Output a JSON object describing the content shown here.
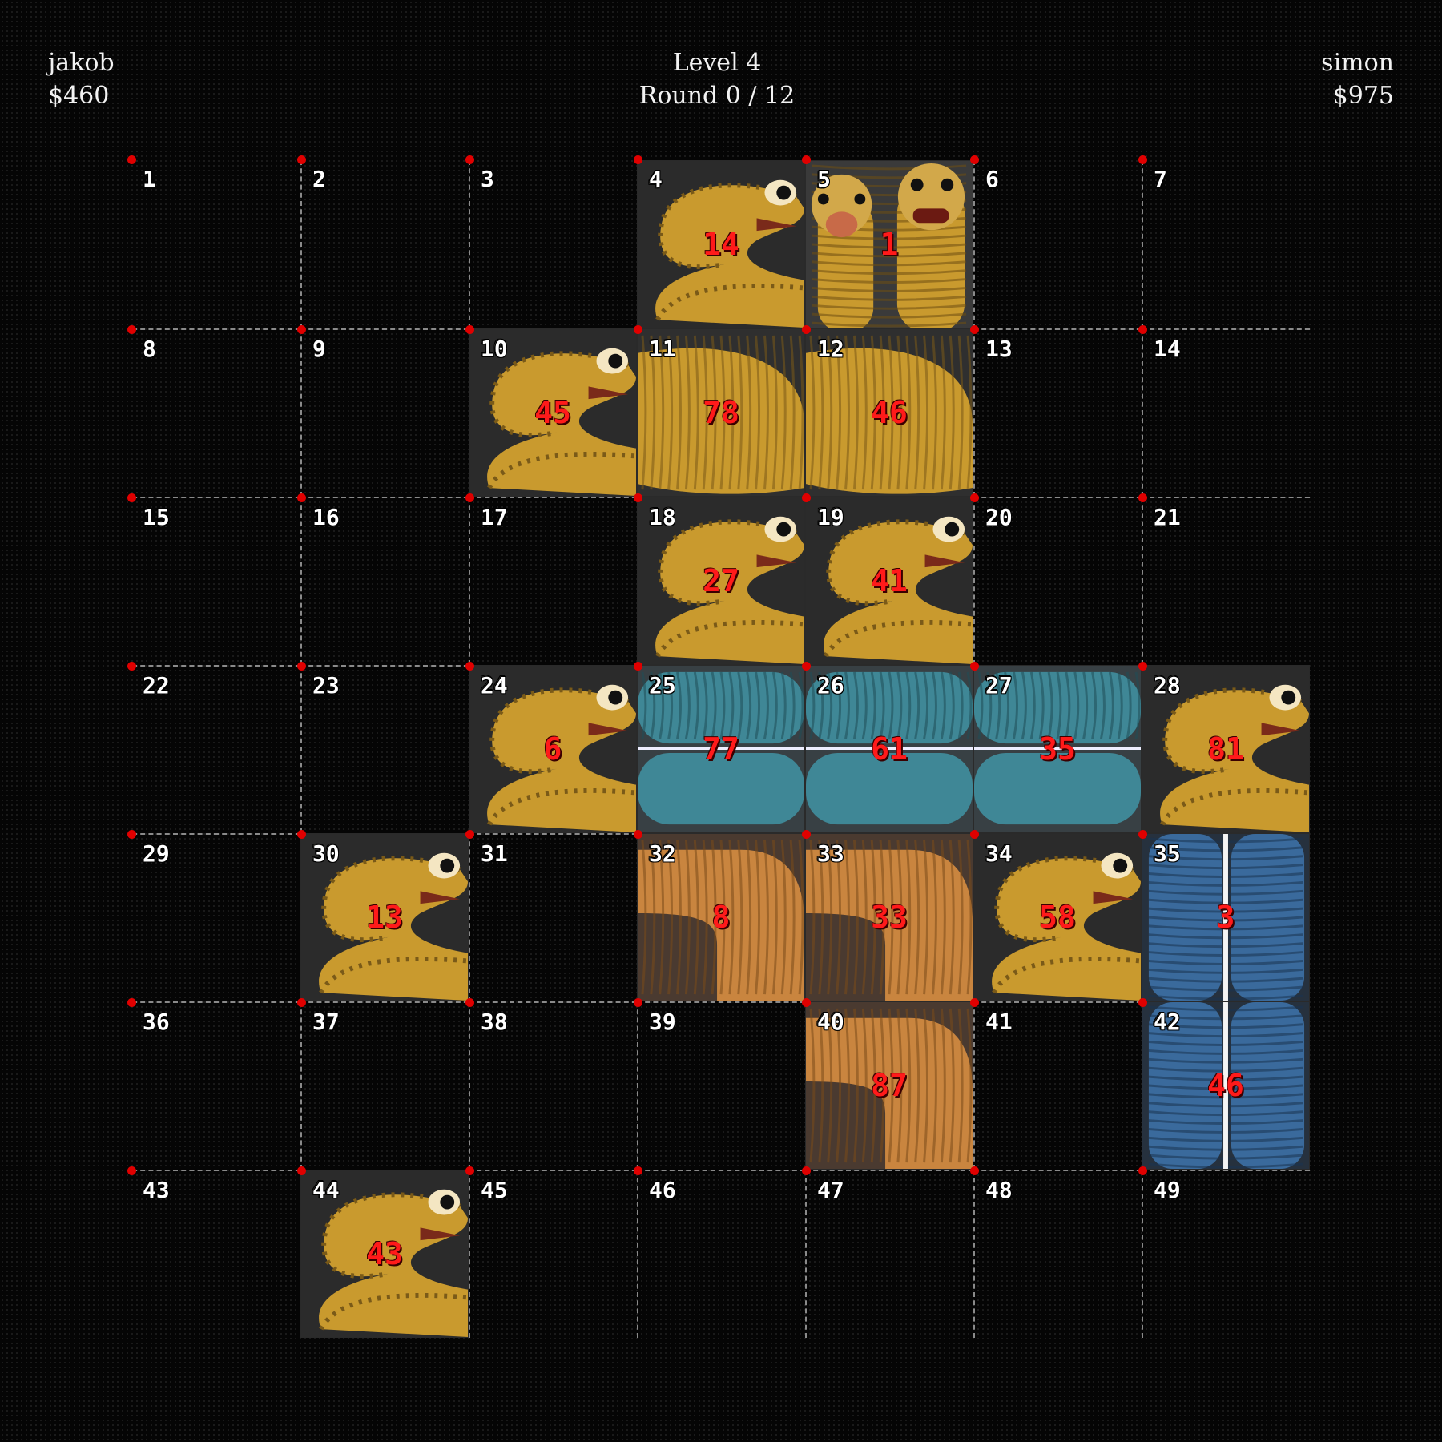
{
  "player_left": {
    "name": "jakob",
    "money": "$460"
  },
  "status": {
    "level": "Level 4",
    "round": "Round 0 / 12"
  },
  "player_right": {
    "name": "simon",
    "money": "$975"
  },
  "board": {
    "rows": 7,
    "cols": 7,
    "cells": [
      1,
      2,
      3,
      4,
      5,
      6,
      7,
      8,
      9,
      10,
      11,
      12,
      13,
      14,
      15,
      16,
      17,
      18,
      19,
      20,
      21,
      22,
      23,
      24,
      25,
      26,
      27,
      28,
      29,
      30,
      31,
      32,
      33,
      34,
      35,
      36,
      37,
      38,
      39,
      40,
      41,
      42,
      43,
      44,
      45,
      46,
      47,
      48,
      49
    ],
    "tiles": [
      {
        "cell": 4,
        "bid": "14",
        "kind": "worm-small",
        "span_cols": 1,
        "span_rows": 1
      },
      {
        "cell": 5,
        "bid": "1",
        "kind": "worm-double",
        "span_cols": 1,
        "span_rows": 1
      },
      {
        "cell": 10,
        "bid": "45",
        "kind": "worm-small",
        "span_cols": 1,
        "span_rows": 1
      },
      {
        "cell": 11,
        "bid": "78",
        "kind": "worm-curve",
        "span_cols": 1,
        "span_rows": 1
      },
      {
        "cell": 12,
        "bid": "46",
        "kind": "worm-curve",
        "span_cols": 1,
        "span_rows": 1
      },
      {
        "cell": 18,
        "bid": "27",
        "kind": "worm-small",
        "span_cols": 1,
        "span_rows": 1
      },
      {
        "cell": 19,
        "bid": "41",
        "kind": "worm-small",
        "span_cols": 1,
        "span_rows": 1
      },
      {
        "cell": 24,
        "bid": "6",
        "kind": "worm-small",
        "span_cols": 1,
        "span_rows": 1
      },
      {
        "cell": 25,
        "bid": "77",
        "kind": "worm-teal",
        "span_cols": 1,
        "span_rows": 1
      },
      {
        "cell": 26,
        "bid": "61",
        "kind": "worm-teal",
        "span_cols": 1,
        "span_rows": 1
      },
      {
        "cell": 27,
        "bid": "35",
        "kind": "worm-teal",
        "span_cols": 1,
        "span_rows": 1
      },
      {
        "cell": 28,
        "bid": "81",
        "kind": "worm-small",
        "span_cols": 1,
        "span_rows": 1
      },
      {
        "cell": 30,
        "bid": "13",
        "kind": "worm-small",
        "span_cols": 1,
        "span_rows": 1
      },
      {
        "cell": 32,
        "bid": "8",
        "kind": "worm-orange",
        "span_cols": 1,
        "span_rows": 1
      },
      {
        "cell": 33,
        "bid": "33",
        "kind": "worm-orange",
        "span_cols": 1,
        "span_rows": 1
      },
      {
        "cell": 34,
        "bid": "58",
        "kind": "worm-small",
        "span_cols": 1,
        "span_rows": 1
      },
      {
        "cell": 35,
        "bid": "3",
        "kind": "worm-blue",
        "span_cols": 1,
        "span_rows": 1
      },
      {
        "cell": 40,
        "bid": "87",
        "kind": "worm-orange",
        "span_cols": 1,
        "span_rows": 1
      },
      {
        "cell": 42,
        "bid": "46",
        "kind": "worm-blue",
        "span_cols": 1,
        "span_rows": 1
      },
      {
        "cell": 44,
        "bid": "43",
        "kind": "worm-small",
        "span_cols": 1,
        "span_rows": 1
      }
    ]
  },
  "colors": {
    "background": "#050505",
    "grid_line": "#8a8a8a",
    "corner_dot": "#e00000",
    "bid_text": "#ff1a1a",
    "worm_gold": "#c99a2e",
    "worm_teal": "#3f8796",
    "worm_orange": "#c9853f",
    "worm_blue": "#3a6a9c"
  }
}
